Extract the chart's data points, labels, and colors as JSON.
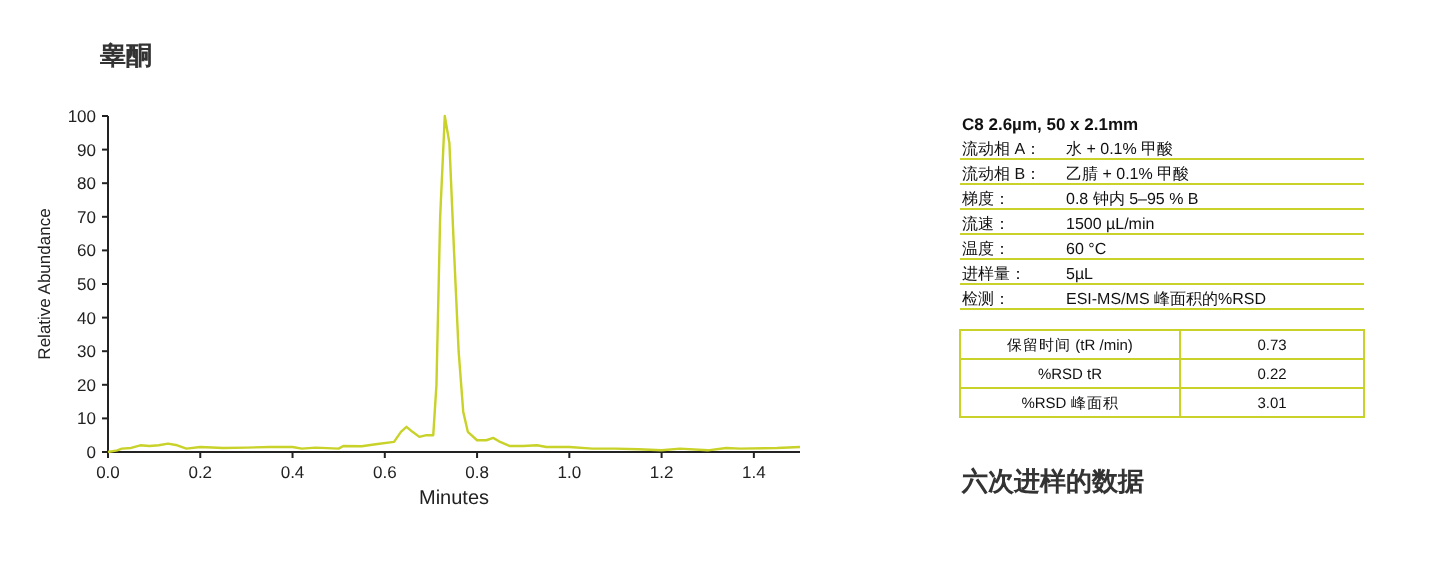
{
  "chart_data": {
    "type": "line",
    "title": "睾酮",
    "xlabel": "Minutes",
    "ylabel": "Relative Abundance",
    "xlim": [
      0,
      1.5
    ],
    "ylim": [
      0,
      100
    ],
    "xticks": [
      {
        "value": 0,
        "label": "0.0"
      },
      {
        "value": 0.2,
        "label": "0.2"
      },
      {
        "value": 0.4,
        "label": "0.4"
      },
      {
        "value": 0.6,
        "label": "0.6"
      },
      {
        "value": 0.8,
        "label": "0.8"
      },
      {
        "value": 1,
        "label": "1.0"
      },
      {
        "value": 1.2,
        "label": "1.2"
      },
      {
        "value": 1.4,
        "label": "1.4"
      }
    ],
    "yticks": [
      0,
      10,
      20,
      30,
      40,
      50,
      60,
      70,
      80,
      90,
      100
    ],
    "grid": false,
    "marker": "none",
    "line_style": "solid",
    "series": [
      {
        "color": "#c8d228",
        "x": [
          0,
          0.02,
          0.03,
          0.05,
          0.07,
          0.09,
          0.11,
          0.13,
          0.15,
          0.17,
          0.2,
          0.25,
          0.3,
          0.35,
          0.4,
          0.42,
          0.45,
          0.5,
          0.51,
          0.55,
          0.58,
          0.62,
          0.635,
          0.647,
          0.66,
          0.675,
          0.69,
          0.705,
          0.712,
          0.72,
          0.73,
          0.74,
          0.75,
          0.76,
          0.77,
          0.78,
          0.8,
          0.82,
          0.835,
          0.85,
          0.87,
          0.9,
          0.93,
          0.95,
          1.0,
          1.05,
          1.1,
          1.15,
          1.2,
          1.24,
          1.3,
          1.34,
          1.37,
          1.45,
          1.5
        ],
        "values": [
          0,
          0.5,
          1,
          1.2,
          2,
          1.8,
          2,
          2.5,
          2,
          1,
          1.5,
          1.2,
          1.3,
          1.5,
          1.5,
          1,
          1.3,
          1,
          1.8,
          1.7,
          2.3,
          3,
          6,
          7.5,
          6,
          4.5,
          5,
          5,
          20,
          70,
          100,
          92,
          60,
          30,
          12,
          6,
          3.5,
          3.5,
          4.2,
          3,
          1.8,
          1.8,
          2,
          1.5,
          1.5,
          1,
          1,
          0.8,
          0.5,
          1,
          0.5,
          1.2,
          1,
          1.2,
          1.5
        ]
      }
    ],
    "annotations": [
      "C8 2.6µm, 50 x 2.1mm",
      "流动相 A：",
      "水 + 0.1% 甲酸",
      "流动相 B：",
      "乙腈 + 0.1% 甲酸",
      "梯度：",
      "0.8 钟内 5–95 % B",
      "流速：",
      "1500 µL/min",
      "温度：",
      "60 °C",
      "进样量：",
      "5µL",
      "检测：",
      "ESI-MS/MS  峰面积的%RSD",
      "保留时间 (tR /min)",
      "0.73",
      "%RSD tR",
      "0.22",
      "%RSD 峰面积",
      "3.01",
      "六次进样的数据"
    ]
  }
}
